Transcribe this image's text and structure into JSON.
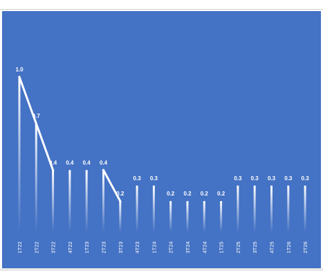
{
  "chart_data": {
    "type": "bar",
    "title": "",
    "xlabel": "",
    "ylabel": "",
    "ylim": [
      0,
      1.0
    ],
    "categories": [
      "1T22",
      "2T22",
      "3T22",
      "4T22",
      "1T23",
      "2T23",
      "3T23",
      "4T23",
      "1T24",
      "2T24",
      "3T24",
      "4T24",
      "1T25",
      "2T25",
      "3T25",
      "4T25",
      "1T26",
      "2T26"
    ],
    "series": [
      {
        "values": [
          1.0,
          0.7,
          0.4,
          0.4,
          0.4,
          0.4,
          0.2,
          0.3,
          0.3,
          0.2,
          0.2,
          0.2,
          0.2,
          0.3,
          0.3,
          0.3,
          0.3,
          0.3
        ],
        "labels": [
          "1.0",
          "0.7",
          "0.4",
          "0.4",
          "0.4",
          "0.4",
          "0.2",
          "0.3",
          "0.3",
          "0.2",
          "0.2",
          "0.2",
          "0.2",
          "0.3",
          "0.3",
          "0.3",
          "0.3",
          "0.3"
        ]
      }
    ],
    "highlighted_segments": [
      [
        0,
        1
      ],
      [
        1,
        2
      ],
      [
        5,
        6
      ]
    ],
    "grid": false,
    "legend": "none"
  },
  "colors": {
    "background": "#4472c4",
    "bar_top": "#ffffff",
    "bar_bottom": "#4472c4",
    "text": "#ffffff",
    "trend": "#ffffff"
  }
}
